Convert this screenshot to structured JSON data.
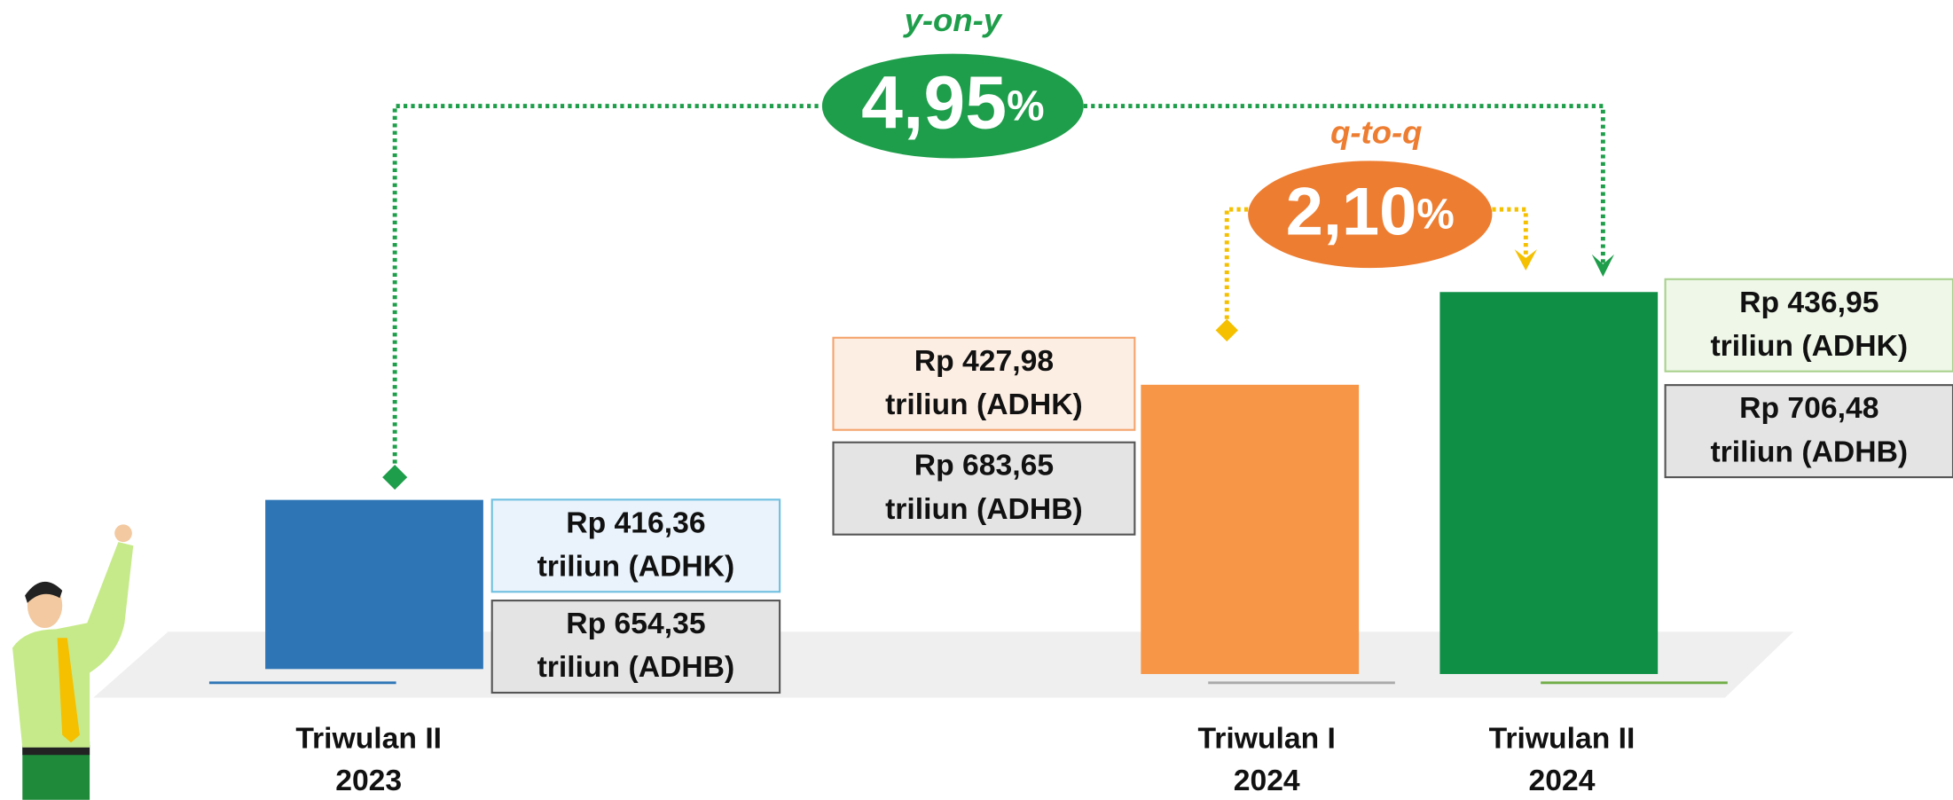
{
  "chart_data": {
    "type": "bar",
    "categories": [
      [
        "Triwulan II",
        "2023"
      ],
      [
        "Triwulan I",
        "2024"
      ],
      [
        "Triwulan II",
        "2024"
      ]
    ],
    "colors": [
      "#2e75b6",
      "#f79646",
      "#0f8f45"
    ],
    "ylim": [
      400,
      440
    ],
    "series": [
      {
        "name": "ADHK",
        "values": [
          416.36,
          427.98,
          436.95
        ],
        "value_labels": [
          [
            "Rp 416,36",
            "triliun (ADHK)"
          ],
          [
            "Rp 427,98",
            "triliun (ADHK)"
          ],
          [
            "Rp 436,95",
            "triliun (ADHK)"
          ]
        ]
      },
      {
        "name": "ADHB",
        "values": [
          654.35,
          683.65,
          706.48
        ],
        "value_labels": [
          [
            "Rp 654,35",
            "triliun (ADHB)"
          ],
          [
            "Rp 683,65",
            "triliun (ADHB)"
          ],
          [
            "Rp 706,48",
            "triliun (ADHB)"
          ]
        ]
      }
    ],
    "growth": [
      {
        "name": "y-on-y",
        "value": 4.95,
        "value_label": "4,95",
        "unit": "%",
        "color": "#1e9e4a"
      },
      {
        "name": "q-to-q",
        "value": 2.1,
        "value_label": "2,10",
        "unit": "%",
        "color": "#ed7d31"
      }
    ]
  }
}
